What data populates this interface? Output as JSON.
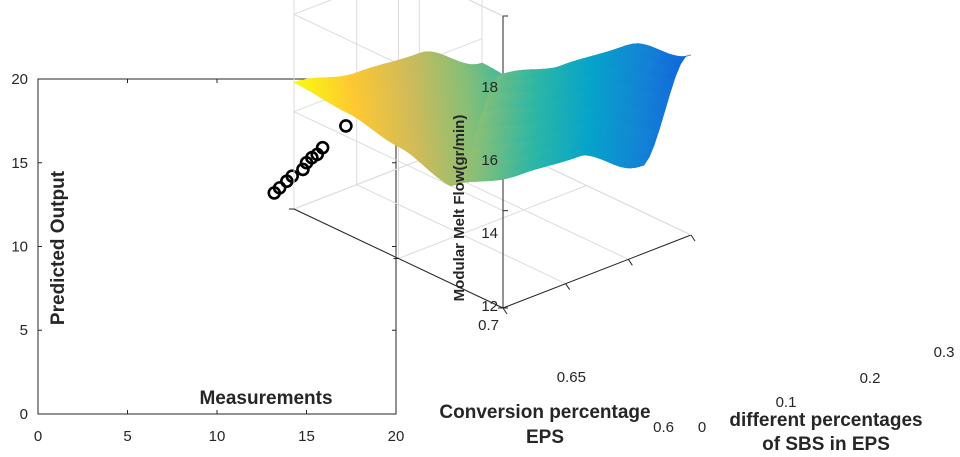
{
  "chart_data": [
    {
      "type": "scatter",
      "xlabel": "Measurements",
      "ylabel": "Predicted Output",
      "xlim": [
        0,
        20
      ],
      "ylim": [
        0,
        20
      ],
      "xticks": [
        "0",
        "5",
        "10",
        "15",
        "20"
      ],
      "yticks": [
        "0",
        "5",
        "10",
        "15",
        "20"
      ],
      "grid": false,
      "marker": "open-circle",
      "marker_color": "#000000",
      "points": [
        {
          "x": 13.2,
          "y": 13.2
        },
        {
          "x": 13.5,
          "y": 13.5
        },
        {
          "x": 13.9,
          "y": 13.9
        },
        {
          "x": 14.2,
          "y": 14.2
        },
        {
          "x": 14.8,
          "y": 14.6
        },
        {
          "x": 15.0,
          "y": 15.0
        },
        {
          "x": 15.3,
          "y": 15.3
        },
        {
          "x": 15.6,
          "y": 15.5
        },
        {
          "x": 15.9,
          "y": 15.9
        },
        {
          "x": 17.2,
          "y": 17.2
        }
      ]
    },
    {
      "type": "surface",
      "zlabel": "Modular Melt Flow(gr/min)",
      "xlabel": "different percentages of SBS in EPS",
      "ylabel": "Conversion percentage EPS",
      "xlim": [
        0,
        0.3
      ],
      "ylim": [
        0.6,
        0.7
      ],
      "zlim": [
        12,
        18
      ],
      "xticks": [
        "0",
        "0.1",
        "0.2",
        "0.3"
      ],
      "yticks": [
        "0.6",
        "0.65",
        "0.7"
      ],
      "zticks": [
        "12",
        "14",
        "16",
        "18"
      ],
      "grid": true,
      "colormap": [
        "#352a87",
        "#0f5cdd",
        "#1481d6",
        "#06a4ca",
        "#2eb7a4",
        "#87bf77",
        "#d1bb59",
        "#fec832",
        "#f9fb0e"
      ],
      "profile_along_conversion": [
        {
          "conversion": 0.6,
          "melt_flow": 16.8
        },
        {
          "conversion": 0.625,
          "melt_flow": 14.0
        },
        {
          "conversion": 0.65,
          "melt_flow": 14.3
        },
        {
          "conversion": 0.675,
          "melt_flow": 14.5
        },
        {
          "conversion": 0.7,
          "melt_flow": 14.6
        }
      ],
      "profile_along_sbs": [
        {
          "sbs": 0.0,
          "melt_flow": 14.6
        },
        {
          "sbs": 0.1,
          "melt_flow": 14.3
        },
        {
          "sbs": 0.2,
          "melt_flow": 14.2
        },
        {
          "sbs": 0.3,
          "melt_flow": 13.5
        }
      ]
    }
  ]
}
